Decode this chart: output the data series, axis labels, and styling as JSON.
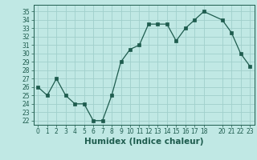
{
  "x": [
    0,
    1,
    2,
    3,
    4,
    5,
    6,
    7,
    8,
    9,
    10,
    11,
    12,
    13,
    14,
    15,
    16,
    17,
    18,
    20,
    21,
    22,
    23
  ],
  "y": [
    26,
    25,
    27,
    25,
    24,
    24,
    22,
    22,
    25,
    29,
    30.5,
    31,
    33.5,
    33.5,
    33.5,
    31.5,
    33,
    34,
    35,
    34,
    32.5,
    30,
    28.5
  ],
  "line_color": "#1e5c4e",
  "marker": "s",
  "marker_size": 2.5,
  "bg_color": "#c0e8e4",
  "grid_color": "#a0d0cc",
  "xlabel": "Humidex (Indice chaleur)",
  "xlim": [
    -0.5,
    23.5
  ],
  "ylim": [
    21.5,
    35.8
  ],
  "yticks": [
    22,
    23,
    24,
    25,
    26,
    27,
    28,
    29,
    30,
    31,
    32,
    33,
    34,
    35
  ],
  "xticks": [
    0,
    1,
    2,
    3,
    4,
    5,
    6,
    7,
    8,
    9,
    10,
    11,
    12,
    13,
    14,
    15,
    16,
    17,
    18,
    20,
    21,
    22,
    23
  ],
  "tick_label_fontsize": 5.5,
  "xlabel_fontsize": 7.5
}
